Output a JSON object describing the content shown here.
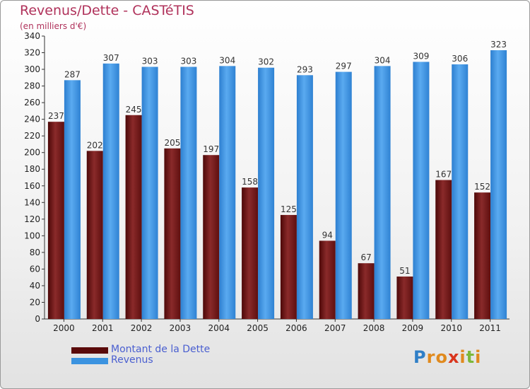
{
  "chart_data": {
    "type": "bar",
    "title": "Revenus/Dette - CASTéTIS",
    "subtitle": "(en milliers d'€)",
    "categories": [
      "2000",
      "2001",
      "2002",
      "2003",
      "2004",
      "2005",
      "2006",
      "2007",
      "2008",
      "2009",
      "2010",
      "2011"
    ],
    "series": [
      {
        "name": "Montant de la Dette",
        "color": "#7a1c1c",
        "values": [
          237,
          202,
          245,
          205,
          197,
          158,
          125,
          94,
          67,
          51,
          167,
          152
        ]
      },
      {
        "name": "Revenus",
        "color": "#3b93e0",
        "values": [
          287,
          307,
          303,
          303,
          304,
          302,
          293,
          297,
          304,
          309,
          306,
          323
        ]
      }
    ],
    "ylim": [
      0,
      340
    ],
    "ytick_step": 20,
    "grid": false,
    "legend_position": "bottom-left"
  },
  "logo": {
    "text": "Proxiti"
  }
}
